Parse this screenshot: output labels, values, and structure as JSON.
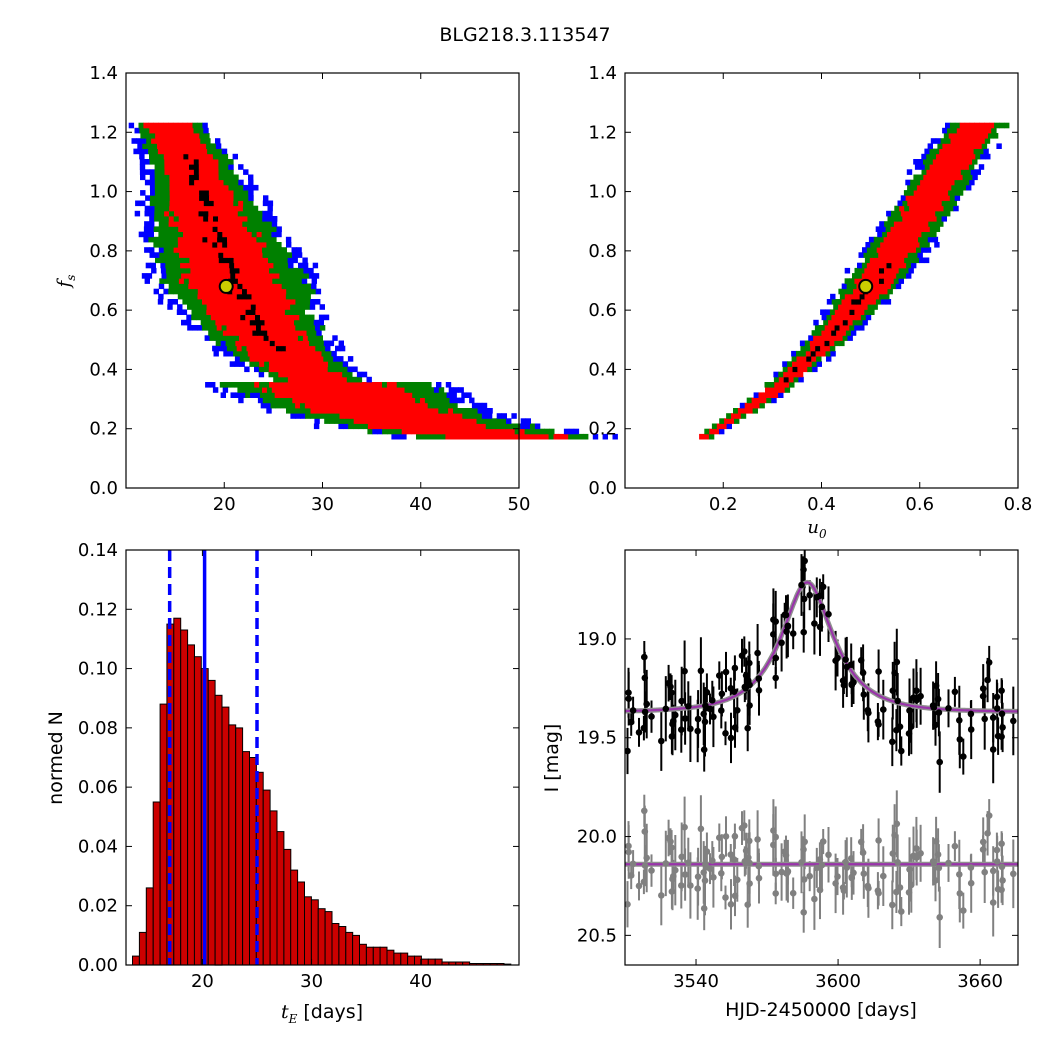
{
  "title": "BLG218.3.113547",
  "chart_data": [
    {
      "type": "heatmap",
      "panel": "fs-vs-tE",
      "ylabel": "f_s",
      "xlabel": "",
      "xlim": [
        10,
        50
      ],
      "ylim": [
        0.0,
        1.4
      ],
      "xticks": [
        "20",
        "30",
        "40",
        "50"
      ],
      "yticks": [
        "0.0",
        "0.2",
        "0.4",
        "0.6",
        "0.8",
        "1.0",
        "1.2",
        "1.4"
      ],
      "levels": [
        {
          "name": "outer",
          "color": "#0000ff"
        },
        {
          "name": "middle",
          "color": "#008000"
        },
        {
          "name": "inner",
          "color": "#ff0000"
        },
        {
          "name": "core",
          "color": "#000000"
        }
      ],
      "ridge": [
        [
          14,
          1.22
        ],
        [
          16,
          1.1
        ],
        [
          17.5,
          0.97
        ],
        [
          19,
          0.82
        ],
        [
          21,
          0.68
        ],
        [
          23,
          0.55
        ],
        [
          26,
          0.43
        ],
        [
          30,
          0.34
        ],
        [
          35,
          0.26
        ],
        [
          42,
          0.19
        ],
        [
          48,
          0.17
        ]
      ],
      "best_fit": {
        "x": 20.2,
        "y": 0.68
      }
    },
    {
      "type": "heatmap",
      "panel": "fs-vs-u0",
      "xlabel": "u_0",
      "ylabel": "",
      "xlim": [
        0.0,
        0.8
      ],
      "ylim": [
        0.0,
        1.4
      ],
      "xticks": [
        "0.2",
        "0.4",
        "0.6",
        "0.8"
      ],
      "yticks": [
        "0.0",
        "0.2",
        "0.4",
        "0.6",
        "0.8",
        "1.0",
        "1.2",
        "1.4"
      ],
      "ridge": [
        [
          0.16,
          0.17
        ],
        [
          0.2,
          0.21
        ],
        [
          0.3,
          0.32
        ],
        [
          0.4,
          0.48
        ],
        [
          0.5,
          0.68
        ],
        [
          0.6,
          0.93
        ],
        [
          0.7,
          1.2
        ],
        [
          0.72,
          1.22
        ]
      ],
      "best_fit": {
        "x": 0.49,
        "y": 0.68
      }
    },
    {
      "type": "bar",
      "panel": "tE-histogram",
      "xlabel": "t_E [days]",
      "ylabel": "normed N",
      "xlim": [
        13,
        49
      ],
      "ylim": [
        0.0,
        0.14
      ],
      "xticks": [
        "20",
        "30",
        "40"
      ],
      "yticks": [
        "0.00",
        "0.02",
        "0.04",
        "0.06",
        "0.08",
        "0.10",
        "0.12",
        "0.14"
      ],
      "bin_start": 13.6,
      "bin_width": 0.63,
      "values": [
        0.003,
        0.011,
        0.026,
        0.055,
        0.088,
        0.115,
        0.117,
        0.113,
        0.108,
        0.104,
        0.1,
        0.096,
        0.091,
        0.087,
        0.081,
        0.08,
        0.072,
        0.07,
        0.065,
        0.059,
        0.052,
        0.045,
        0.039,
        0.032,
        0.028,
        0.023,
        0.022,
        0.019,
        0.018,
        0.014,
        0.013,
        0.011,
        0.01,
        0.007,
        0.006,
        0.006,
        0.006,
        0.005,
        0.004,
        0.004,
        0.003,
        0.003,
        0.002,
        0.002,
        0.002,
        0.001,
        0.001,
        0.001,
        0.001,
        0.0005,
        0.0005,
        0.0005,
        0.0005,
        0.0005,
        0.0003
      ],
      "bar_color": "#cc0000",
      "median": 20.2,
      "interval": [
        17.0,
        25.0
      ]
    },
    {
      "type": "scatter",
      "panel": "light-curve",
      "xlabel": "HJD-2450000 [days]",
      "ylabel": "I [mag]",
      "xlim": [
        3510,
        3676
      ],
      "ylim": [
        20.65,
        18.55
      ],
      "xticks": [
        "3540",
        "3600",
        "3660"
      ],
      "yticks": [
        "19.0",
        "19.5",
        "20.0",
        "20.5"
      ],
      "model": {
        "t0": 3587,
        "tE": 20.2,
        "u0": 0.49,
        "fs": 0.68,
        "baseline": 19.37
      },
      "residual_baseline": 20.14,
      "data_color": "#000000",
      "residual_color": "#808080",
      "model_color": "#9933aa"
    }
  ]
}
